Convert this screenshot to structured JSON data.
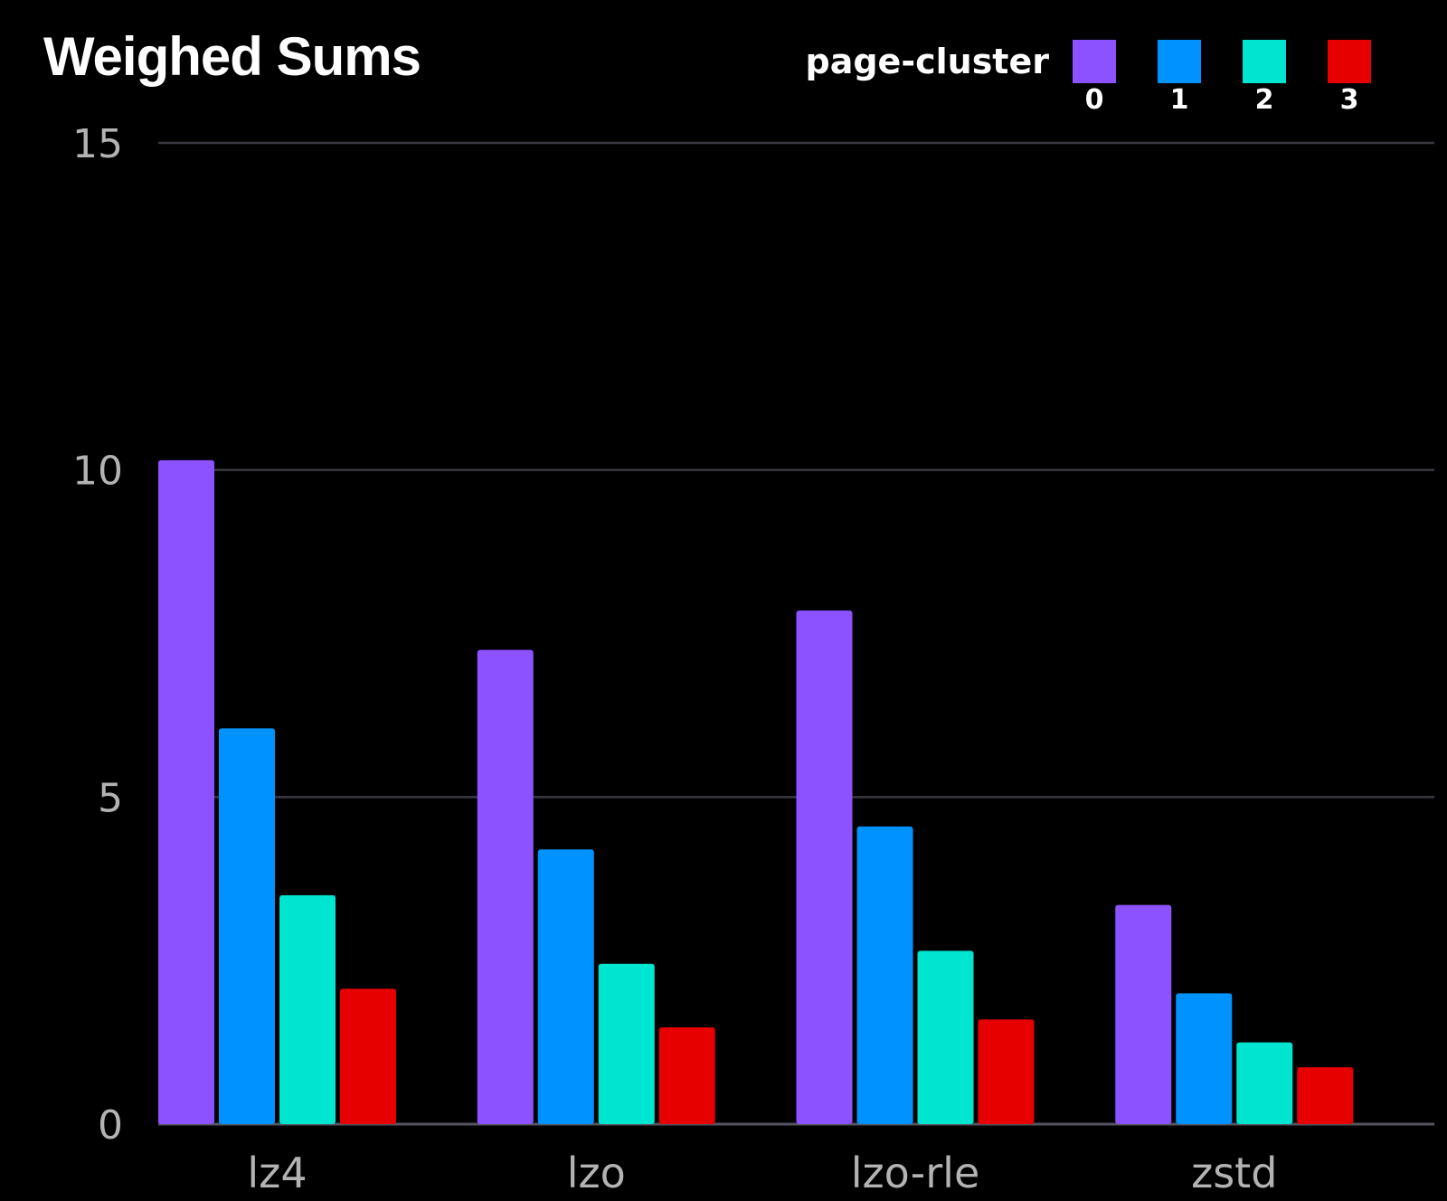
{
  "chart_data": {
    "type": "bar",
    "title": "Weighed Sums",
    "xlabel": "",
    "ylabel": "",
    "ylim": [
      0,
      15
    ],
    "yticks": [
      0,
      5,
      10,
      15
    ],
    "grid": true,
    "categories": [
      "lz4",
      "lzo",
      "lzo-rle",
      "zstd"
    ],
    "legend": {
      "title": "page-cluster",
      "position": "top-right"
    },
    "series": [
      {
        "name": "0",
        "color": "#8c52ff",
        "values": [
          10.15,
          7.25,
          7.85,
          3.35
        ]
      },
      {
        "name": "1",
        "color": "#0093ff",
        "values": [
          6.05,
          4.2,
          4.55,
          2.0
        ]
      },
      {
        "name": "2",
        "color": "#00e5d0",
        "values": [
          3.5,
          2.45,
          2.65,
          1.25
        ]
      },
      {
        "name": "3",
        "color": "#e60000",
        "values": [
          2.07,
          1.48,
          1.6,
          0.87
        ]
      }
    ]
  },
  "colors": {
    "background": "#000000",
    "gridline": "#3a3a44",
    "axis_text": "#b3b3b3",
    "title_text": "#ffffff"
  }
}
